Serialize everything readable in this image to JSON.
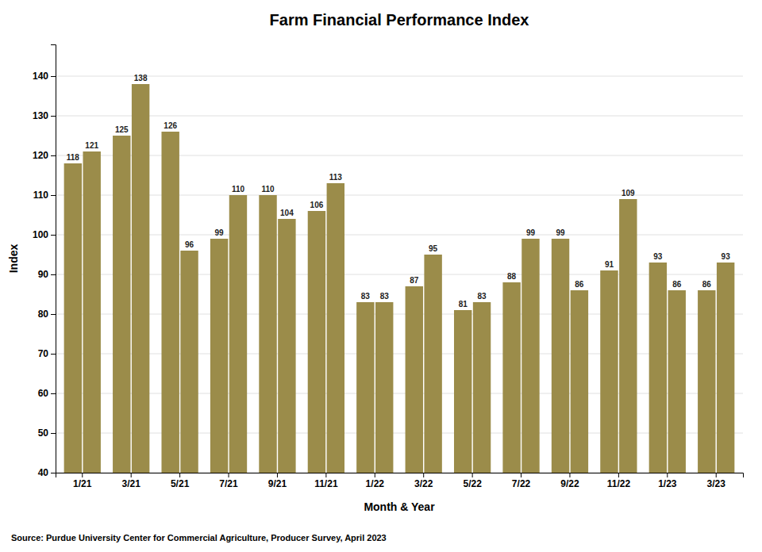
{
  "chart_data": {
    "type": "bar",
    "title": "Farm Financial Performance Index",
    "x_label": "Month & Year",
    "y_label": "Index",
    "source": "Source: Purdue University Center for Commercial Agriculture, Producer Survey, April 2023",
    "categories": [
      "1/21",
      null,
      "3/21",
      null,
      "5/21",
      null,
      "7/21",
      null,
      "9/21",
      null,
      "11/21",
      null,
      "1/22",
      null,
      "3/22",
      null,
      "5/22",
      null,
      "7/22",
      null,
      "9/22",
      null,
      "11/22",
      null,
      "1/23",
      null,
      "3/23",
      null
    ],
    "values": [
      118,
      121,
      125,
      138,
      126,
      96,
      99,
      110,
      110,
      104,
      106,
      113,
      83,
      83,
      87,
      95,
      81,
      83,
      88,
      99,
      99,
      86,
      91,
      109,
      93,
      86,
      86,
      93
    ],
    "color": "#9B8C4A",
    "ylim": [
      40,
      148
    ],
    "yticks": [
      40,
      50,
      60,
      70,
      80,
      90,
      100,
      110,
      120,
      130,
      140
    ],
    "grid": true,
    "data_labels": true
  }
}
